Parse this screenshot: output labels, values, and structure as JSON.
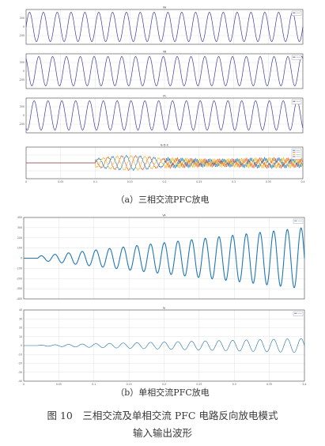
{
  "captions": {
    "a": "（a）三相交流PFC放电",
    "b": "（b）单相交流PFC放电",
    "figure_line1": "图 10　三相交流及单相交流 PFC 电路反向放电模式",
    "figure_line2": "输入输出波形"
  },
  "colors": {
    "sine": "#3d3d9e",
    "single_current": "#1f6fa0",
    "single_voltage": "#1f77b4",
    "series_a": "#0072bd",
    "series_b": "#d95319",
    "series_c": "#edb120",
    "series_d": "#7e2f8e"
  },
  "chart_data": [
    {
      "type": "line",
      "title": "VA",
      "xlim": [
        0,
        0.4
      ],
      "ylim": [
        -300,
        300
      ],
      "yticks": [
        "200",
        "0",
        "-200"
      ],
      "legend": "top-right",
      "series": [
        {
          "kind": "sine",
          "amplitude": 300,
          "cycles": 20
        }
      ]
    },
    {
      "type": "line",
      "title": "VB",
      "xlim": [
        0,
        0.4
      ],
      "ylim": [
        -300,
        300
      ],
      "yticks": [
        "200",
        "0",
        "-200"
      ],
      "legend": "top-right",
      "series": [
        {
          "kind": "sine",
          "amplitude": 300,
          "cycles": 20
        }
      ]
    },
    {
      "type": "line",
      "title": "VC",
      "xlim": [
        0,
        0.4
      ],
      "ylim": [
        -300,
        300
      ],
      "yticks": [
        "200",
        "0",
        "-200"
      ],
      "legend": "top-right",
      "series": [
        {
          "kind": "sine",
          "amplitude": 300,
          "cycles": 20
        }
      ]
    },
    {
      "type": "line",
      "title": "Ia Ib Ic",
      "xlim": [
        0,
        0.4
      ],
      "ylim": [
        -40,
        40
      ],
      "xticks": [
        "0",
        "0.05",
        "0.1",
        "0.15",
        "0.2",
        "0.25",
        "0.3",
        "0.35",
        "0.4"
      ],
      "legend": "top-right",
      "series": [
        {
          "kind": "three-phase-current",
          "start": 0.1,
          "peak_time": 0.2,
          "amplitude": 12
        }
      ]
    },
    {
      "type": "line",
      "title": "VA",
      "xlim": [
        0,
        0.4
      ],
      "ylim": [
        -400,
        400
      ],
      "yticks": [
        "400",
        "300",
        "200",
        "100",
        "0",
        "-100",
        "-200",
        "-300",
        "-400"
      ],
      "legend": "top-right",
      "series": [
        {
          "kind": "growing-sine",
          "start": 0.02,
          "cycles": 19.5,
          "amplitude_start": 20,
          "amplitude_end": 300
        }
      ]
    },
    {
      "type": "line",
      "title": "Ia",
      "xlim": [
        0,
        0.4
      ],
      "ylim": [
        -40,
        40
      ],
      "yticks": [
        "40",
        "30",
        "20",
        "10",
        "0",
        "-10",
        "-20",
        "-30",
        "-40"
      ],
      "xticks": [
        "0",
        "0.05",
        "0.1",
        "0.15",
        "0.2",
        "0.25",
        "0.3",
        "0.35",
        "0.4"
      ],
      "legend": "top-right",
      "series": [
        {
          "kind": "growing-sine",
          "start": 0.02,
          "cycles": 19.5,
          "amplitude_start": 0.5,
          "amplitude_end": 8
        }
      ]
    }
  ]
}
